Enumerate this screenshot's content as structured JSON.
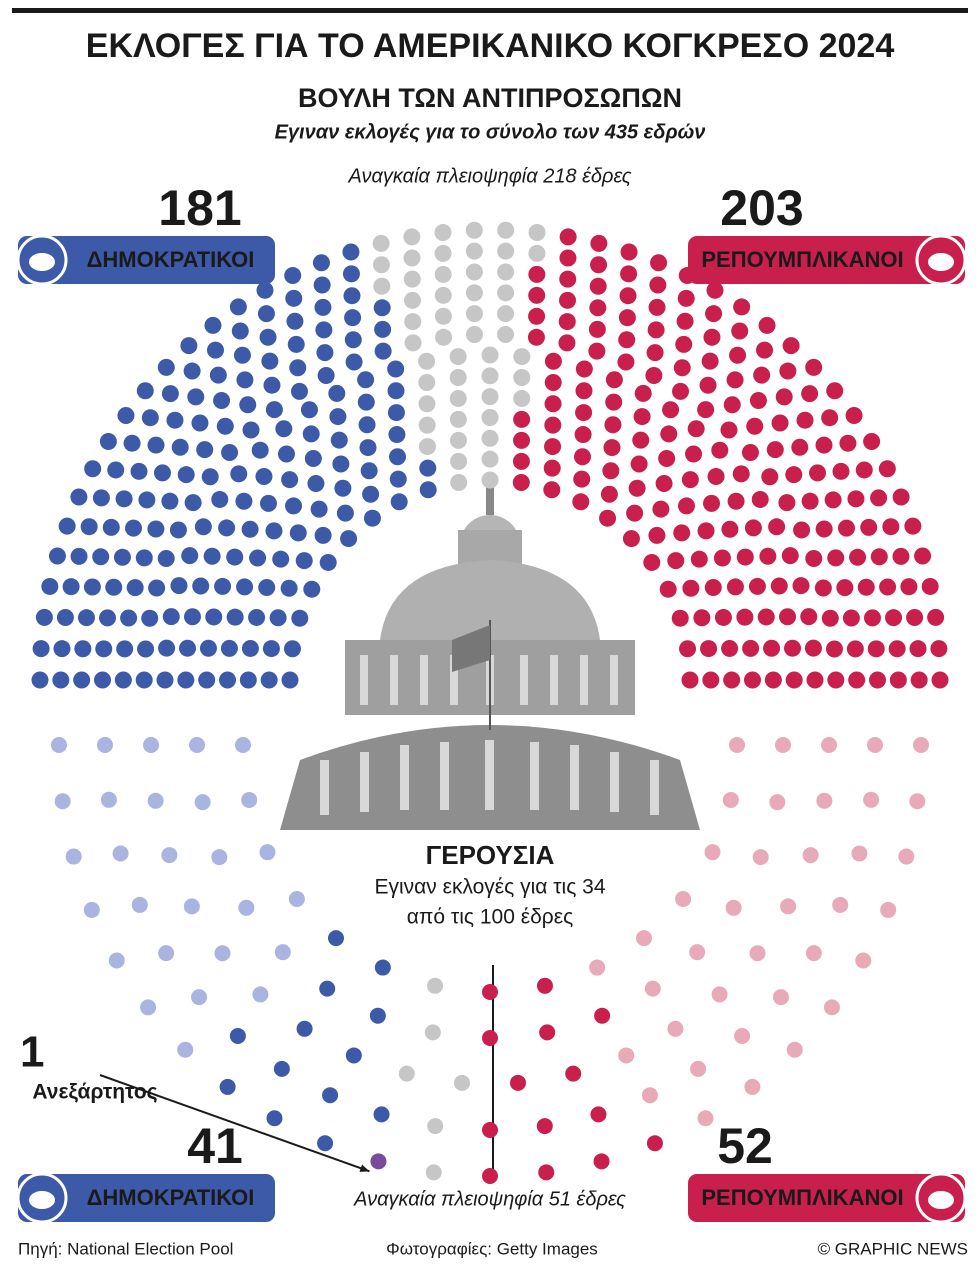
{
  "title": "ΕΚΛΟΓΕΣ ΓΙΑ ΤΟ ΑΜΕΡΙΚΑΝΙΚΟ ΚΟΓΚΡΕΣΟ 2024",
  "chart_data": [
    {
      "type": "parliament",
      "title": "ΒΟΥΛΗ ΤΩΝ ΑΝΤΙΠΡΟΣΩΠΩΝ",
      "subtitle": "Εγιναν εκλογές για το σύνολο των 435 εδρών",
      "annotation": "Αναγκαία πλειοψηφία 218 έδρες",
      "series": [
        {
          "name": "ΔΗΜΟΚΡΑΤΙΚΟΙ",
          "colors": [
            "#3d5aa8"
          ],
          "values": [
            181
          ]
        },
        {
          "colors": [
            "#c6c6c6"
          ],
          "values": [
            51
          ]
        },
        {
          "name": "ΡΕΠΟΥΜΠΛΙΚΑΝΟΙ",
          "colors": [
            "#c81f4d"
          ],
          "values": [
            203
          ]
        }
      ]
    },
    {
      "type": "parliament",
      "title": "ΓΕΡΟΥΣΙΑ",
      "subtitle": [
        "Εγιναν εκλογές για τις 34",
        "από τις 100 έδρες"
      ],
      "annotation": "Αναγκαία πλειοψηφία 51 έδρες",
      "series": [
        {
          "name": "ΔΗΜΟΚΡΑΤΙΚΟΙ",
          "total": 41,
          "colors": [
            "#a9b4e0",
            "#3d5aa8"
          ],
          "values": [
            28,
            13
          ]
        },
        {
          "name": "Ανεξάρτητος",
          "total": 1,
          "colors": [
            "#7b4b9b"
          ],
          "values": [
            1
          ]
        },
        {
          "colors": [
            "#c6c6c6"
          ],
          "values": [
            6
          ]
        },
        {
          "name": "ΡΕΠΟΥΜΠΛΙΚΑΝΟΙ",
          "total": 52,
          "colors": [
            "#c81f4d",
            "#e8aab8"
          ],
          "values": [
            14,
            38
          ]
        }
      ]
    }
  ],
  "source": "Πηγή: National Election Pool",
  "photos": "Φωτογραφίες: Getty Images",
  "credit": "© GRAPHIC NEWS"
}
